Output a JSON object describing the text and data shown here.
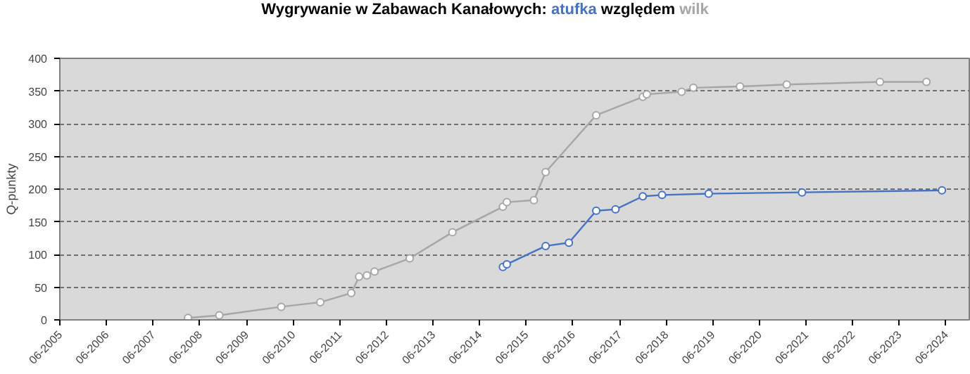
{
  "chart_data": {
    "type": "line",
    "title": "Wygrywanie w Zabawach Kanałowych:",
    "annotations": [
      "względem"
    ],
    "ylabel": "Q-punkty",
    "xlim": [
      "2005-06",
      "2024-12"
    ],
    "ylim": [
      0,
      400
    ],
    "xticks": [
      {
        "value": "2005-06",
        "label": "06-2005"
      },
      {
        "value": "2006-06",
        "label": "06-2006"
      },
      {
        "value": "2007-06",
        "label": "06-2007"
      },
      {
        "value": "2008-06",
        "label": "06-2008"
      },
      {
        "value": "2009-06",
        "label": "06-2009"
      },
      {
        "value": "2010-06",
        "label": "06-2010"
      },
      {
        "value": "2011-06",
        "label": "06-2011"
      },
      {
        "value": "2012-06",
        "label": "06-2012"
      },
      {
        "value": "2013-06",
        "label": "06-2013"
      },
      {
        "value": "2014-06",
        "label": "06-2014"
      },
      {
        "value": "2015-06",
        "label": "06-2015"
      },
      {
        "value": "2016-06",
        "label": "06-2016"
      },
      {
        "value": "2017-06",
        "label": "06-2017"
      },
      {
        "value": "2018-06",
        "label": "06-2018"
      },
      {
        "value": "2019-06",
        "label": "06-2019"
      },
      {
        "value": "2020-06",
        "label": "06-2020"
      },
      {
        "value": "2021-06",
        "label": "06-2021"
      },
      {
        "value": "2022-06",
        "label": "06-2022"
      },
      {
        "value": "2023-06",
        "label": "06-2023"
      },
      {
        "value": "2024-06",
        "label": "06-2024"
      }
    ],
    "yticks": [
      0,
      50,
      100,
      150,
      200,
      250,
      300,
      350,
      400
    ],
    "grid": "y",
    "legend": false,
    "marker": "circle",
    "line_style": "solid",
    "series": [
      {
        "name": "atufka",
        "color": "#4472c4",
        "x": [
          "2014-12",
          "2015-01",
          "2015-11",
          "2016-05",
          "2016-12",
          "2017-05",
          "2017-12",
          "2018-05",
          "2019-05",
          "2021-05",
          "2024-05"
        ],
        "values": [
          81,
          85,
          113,
          118,
          167,
          169,
          189,
          191,
          193,
          195,
          198
        ]
      },
      {
        "name": "wilk",
        "color": "#a6a6a6",
        "x": [
          "2008-03",
          "2008-11",
          "2010-03",
          "2011-01",
          "2011-09",
          "2011-11",
          "2012-01",
          "2012-03",
          "2012-12",
          "2013-11",
          "2014-12",
          "2015-01",
          "2015-08",
          "2015-11",
          "2016-12",
          "2017-12",
          "2018-01",
          "2018-10",
          "2019-01",
          "2020-01",
          "2021-01",
          "2023-01",
          "2024-01"
        ],
        "values": [
          3,
          7,
          20,
          27,
          41,
          66,
          68,
          74,
          94,
          134,
          173,
          180,
          183,
          226,
          313,
          341,
          345,
          349,
          355,
          357,
          360,
          364,
          364
        ]
      }
    ]
  }
}
